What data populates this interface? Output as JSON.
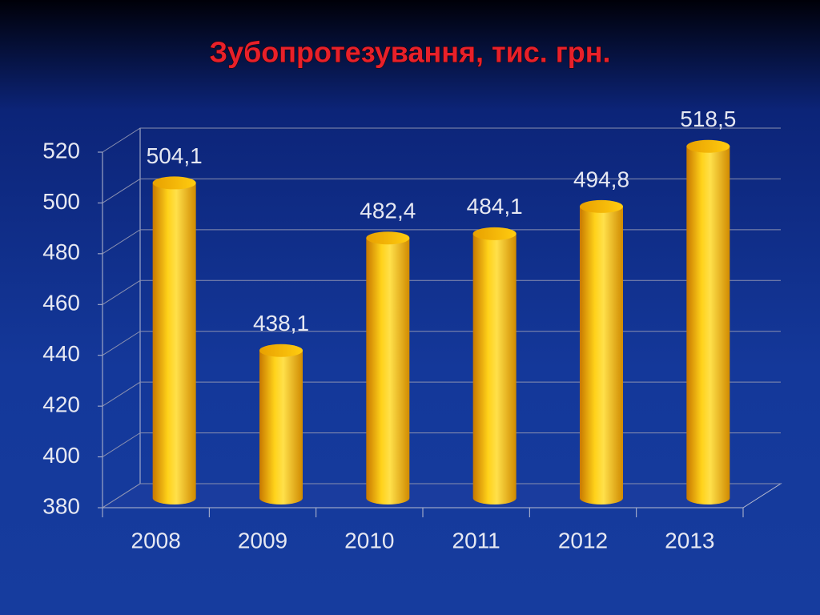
{
  "chart_data": {
    "type": "bar",
    "title": "Зубопротезування,  тис. грн.",
    "categories": [
      "2008",
      "2009",
      "2010",
      "2011",
      "2012",
      "2013"
    ],
    "values": [
      504.1,
      438.1,
      482.4,
      484.1,
      494.8,
      518.5
    ],
    "value_labels": [
      "504,1",
      "438,1",
      "482,4",
      "484,1",
      "494,8",
      "518,5"
    ],
    "color": "#f5c400",
    "ylim": [
      380,
      520
    ],
    "yticks": [
      380,
      400,
      420,
      440,
      460,
      480,
      500,
      520
    ],
    "grid": true
  }
}
